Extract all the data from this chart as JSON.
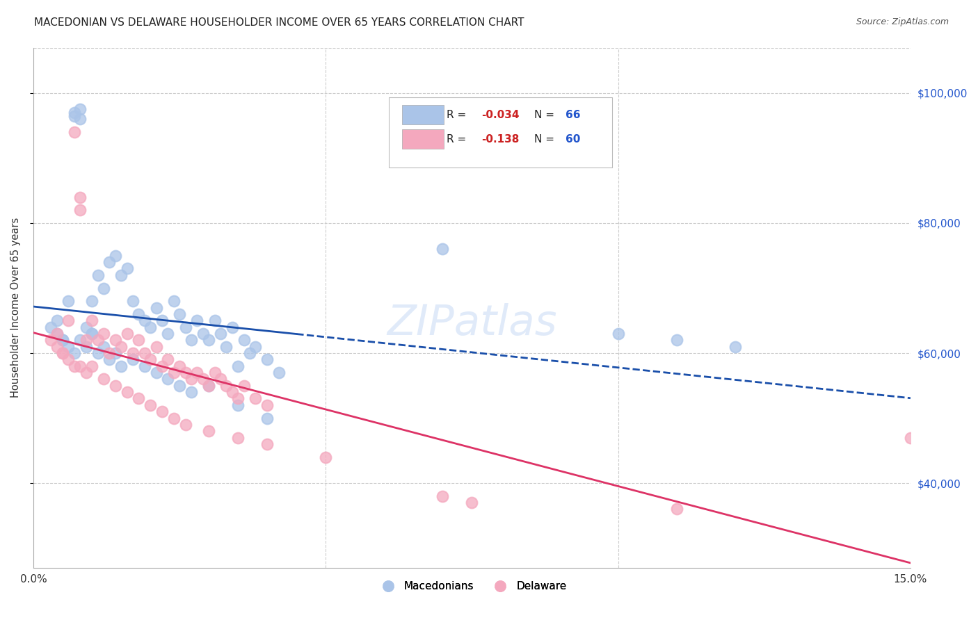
{
  "title": "MACEDONIAN VS DELAWARE HOUSEHOLDER INCOME OVER 65 YEARS CORRELATION CHART",
  "source": "Source: ZipAtlas.com",
  "ylabel": "Householder Income Over 65 years",
  "xlim": [
    0.0,
    0.15
  ],
  "ylim": [
    27000,
    107000
  ],
  "yticks": [
    40000,
    60000,
    80000,
    100000
  ],
  "ytick_labels": [
    "$40,000",
    "$60,000",
    "$80,000",
    "$100,000"
  ],
  "xtick_positions": [
    0.0,
    0.05,
    0.1,
    0.15
  ],
  "xtick_labels": [
    "0.0%",
    "",
    "",
    "15.0%"
  ],
  "legend_blue_R": "-0.034",
  "legend_blue_N": "66",
  "legend_pink_R": "-0.138",
  "legend_pink_N": "60",
  "blue_color": "#aac4e8",
  "pink_color": "#f4a8be",
  "trendline_blue_color": "#1a4faa",
  "trendline_pink_color": "#dd3366",
  "background_color": "#ffffff",
  "grid_color": "#cccccc",
  "watermark_color": "#ccddf5",
  "blue_x": [
    0.004,
    0.005,
    0.006,
    0.007,
    0.007,
    0.008,
    0.008,
    0.009,
    0.01,
    0.01,
    0.011,
    0.012,
    0.013,
    0.014,
    0.015,
    0.016,
    0.017,
    0.018,
    0.019,
    0.02,
    0.021,
    0.022,
    0.023,
    0.024,
    0.025,
    0.026,
    0.027,
    0.028,
    0.029,
    0.03,
    0.031,
    0.032,
    0.033,
    0.034,
    0.035,
    0.036,
    0.037,
    0.038,
    0.04,
    0.042,
    0.003,
    0.004,
    0.005,
    0.006,
    0.007,
    0.008,
    0.009,
    0.01,
    0.011,
    0.012,
    0.013,
    0.014,
    0.015,
    0.017,
    0.019,
    0.021,
    0.023,
    0.025,
    0.027,
    0.03,
    0.035,
    0.04,
    0.07,
    0.1,
    0.11,
    0.12
  ],
  "blue_y": [
    65000,
    62000,
    68000,
    97000,
    96500,
    97500,
    96000,
    64000,
    68000,
    63000,
    72000,
    70000,
    74000,
    75000,
    72000,
    73000,
    68000,
    66000,
    65000,
    64000,
    67000,
    65000,
    63000,
    68000,
    66000,
    64000,
    62000,
    65000,
    63000,
    62000,
    65000,
    63000,
    61000,
    64000,
    58000,
    62000,
    60000,
    61000,
    59000,
    57000,
    64000,
    63000,
    62000,
    61000,
    60000,
    62000,
    61000,
    63000,
    60000,
    61000,
    59000,
    60000,
    58000,
    59000,
    58000,
    57000,
    56000,
    55000,
    54000,
    55000,
    52000,
    50000,
    76000,
    63000,
    62000,
    61000
  ],
  "pink_x": [
    0.004,
    0.005,
    0.006,
    0.007,
    0.008,
    0.008,
    0.009,
    0.01,
    0.011,
    0.012,
    0.013,
    0.014,
    0.015,
    0.016,
    0.017,
    0.018,
    0.019,
    0.02,
    0.021,
    0.022,
    0.023,
    0.024,
    0.025,
    0.026,
    0.027,
    0.028,
    0.029,
    0.03,
    0.031,
    0.032,
    0.033,
    0.034,
    0.035,
    0.036,
    0.038,
    0.04,
    0.003,
    0.004,
    0.005,
    0.006,
    0.007,
    0.008,
    0.009,
    0.01,
    0.012,
    0.014,
    0.016,
    0.018,
    0.02,
    0.022,
    0.024,
    0.026,
    0.03,
    0.035,
    0.04,
    0.05,
    0.07,
    0.075,
    0.11,
    0.15
  ],
  "pink_y": [
    63000,
    60000,
    65000,
    94000,
    82000,
    84000,
    62000,
    65000,
    62000,
    63000,
    60000,
    62000,
    61000,
    63000,
    60000,
    62000,
    60000,
    59000,
    61000,
    58000,
    59000,
    57000,
    58000,
    57000,
    56000,
    57000,
    56000,
    55000,
    57000,
    56000,
    55000,
    54000,
    53000,
    55000,
    53000,
    52000,
    62000,
    61000,
    60000,
    59000,
    58000,
    58000,
    57000,
    58000,
    56000,
    55000,
    54000,
    53000,
    52000,
    51000,
    50000,
    49000,
    48000,
    47000,
    46000,
    44000,
    38000,
    37000,
    36000,
    47000
  ]
}
